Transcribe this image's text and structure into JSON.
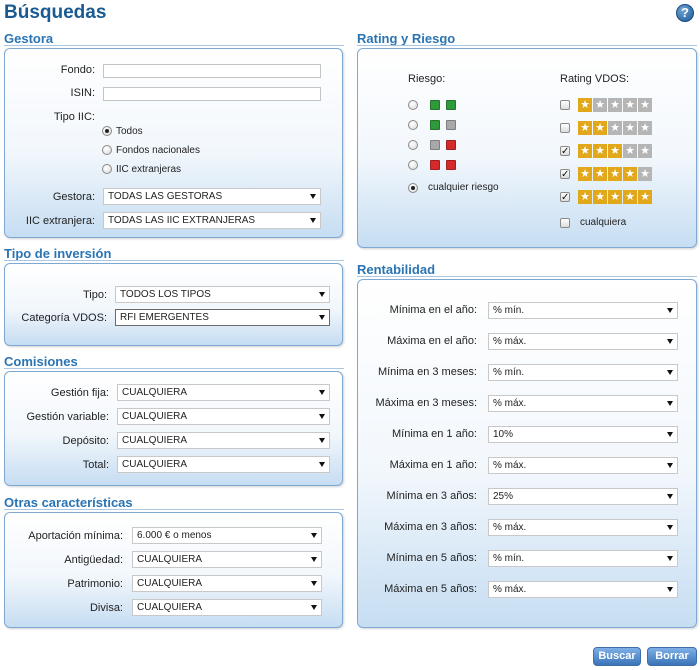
{
  "page": {
    "title": "Búsquedas",
    "help": "?"
  },
  "gestora": {
    "title": "Gestora",
    "fondo_label": "Fondo:",
    "fondo_value": "",
    "isin_label": "ISIN:",
    "isin_value": "",
    "tipo_iic_label": "Tipo IIC:",
    "tipo_options": [
      "Todos",
      "Fondos nacionales",
      "IIC extranjeras"
    ],
    "tipo_selected": 0,
    "gestora_label": "Gestora:",
    "gestora_value": "TODAS LAS GESTORAS",
    "iic_ext_label": "IIC extranjera:",
    "iic_ext_value": "TODAS LAS IIC EXTRANJERAS"
  },
  "tipo_inversion": {
    "title": "Tipo de inversión",
    "tipo_label": "Tipo:",
    "tipo_value": "TODOS LOS TIPOS",
    "categoria_label": "Categoría VDOS:",
    "categoria_value": "RFI EMERGENTES"
  },
  "comisiones": {
    "title": "Comisiones",
    "rows": [
      {
        "label": "Gestión fija:",
        "value": "CUALQUIERA"
      },
      {
        "label": "Gestión variable:",
        "value": "CUALQUIERA"
      },
      {
        "label": "Depósito:",
        "value": "CUALQUIERA"
      },
      {
        "label": "Total:",
        "value": "CUALQUIERA"
      }
    ]
  },
  "otras": {
    "title": "Otras características",
    "rows": [
      {
        "label": "Aportación mínima:",
        "value": "6.000 € o menos"
      },
      {
        "label": "Antigüedad:",
        "value": "CUALQUIERA"
      },
      {
        "label": "Patrimonio:",
        "value": "CUALQUIERA"
      },
      {
        "label": "Divisa:",
        "value": "CUALQUIERA"
      }
    ]
  },
  "rating": {
    "title": "Rating y Riesgo",
    "riesgo_label": "Riesgo:",
    "rating_label": "Rating VDOS:",
    "colors": {
      "green": "#2f9a3a",
      "gray": "#a8a8a8",
      "red": "#d42a2a",
      "gold": "#e0a81a",
      "star_gray": "#b5b5b5"
    },
    "riesgo_options": [
      [
        "green",
        "green"
      ],
      [
        "green",
        "gray"
      ],
      [
        "gray",
        "red"
      ],
      [
        "red",
        "red"
      ]
    ],
    "riesgo_any_label": "cualquier riesgo",
    "riesgo_selected": 4,
    "rating_options": [
      {
        "stars": 1,
        "checked": false
      },
      {
        "stars": 2,
        "checked": false
      },
      {
        "stars": 3,
        "checked": true
      },
      {
        "stars": 4,
        "checked": true
      },
      {
        "stars": 5,
        "checked": true
      }
    ],
    "rating_any_label": "cualquiera",
    "rating_any_checked": false
  },
  "rentabilidad": {
    "title": "Rentabilidad",
    "rows": [
      {
        "label": "Mínima en el año:",
        "value": "% mín."
      },
      {
        "label": "Máxima en el año:",
        "value": "% máx."
      },
      {
        "label": "Mínima en 3 meses:",
        "value": "% mín."
      },
      {
        "label": "Máxima en 3 meses:",
        "value": "% máx."
      },
      {
        "label": "Mínima en 1 año:",
        "value": "10%"
      },
      {
        "label": "Máxima en 1 año:",
        "value": "% máx."
      },
      {
        "label": "Mínima en 3 años:",
        "value": "25%"
      },
      {
        "label": "Máxima en 3 años:",
        "value": "% máx."
      },
      {
        "label": "Mínima en 5 años:",
        "value": "% mín."
      },
      {
        "label": "Máxima en 5 años:",
        "value": "% máx."
      }
    ]
  },
  "actions": {
    "search_label": "Buscar",
    "clear_label": "Borrar"
  }
}
